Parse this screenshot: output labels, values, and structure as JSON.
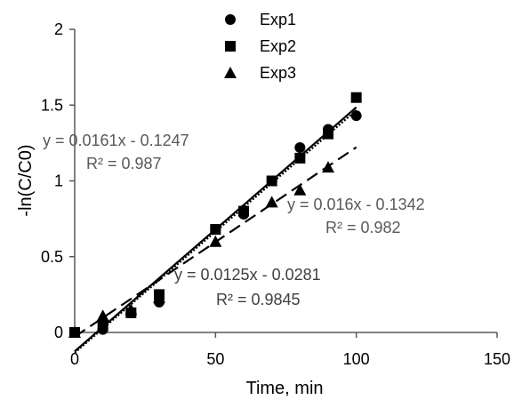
{
  "chart_data": {
    "type": "scatter",
    "xlabel": "Time, min",
    "ylabel": "-ln(C/C0)",
    "xlim": [
      0,
      150
    ],
    "ylim": [
      0,
      2
    ],
    "x_ticks": [
      "0",
      "50",
      "100",
      "150"
    ],
    "y_ticks": [
      "0",
      "0.5",
      "1",
      "1.5",
      "2"
    ],
    "grid": false,
    "legend_position": "top-center",
    "series": [
      {
        "name": "Exp1",
        "marker": "circle",
        "x": [
          0,
          10,
          20,
          30,
          50,
          60,
          70,
          80,
          90,
          100
        ],
        "y": [
          0,
          0.02,
          0.13,
          0.2,
          0.68,
          0.78,
          1.0,
          1.22,
          1.34,
          1.43
        ],
        "trendline": {
          "style": "solid",
          "x_range": [
            0,
            100
          ],
          "slope": 0.0161,
          "intercept": -0.1247,
          "equation": "y = 0.0161x - 0.1247",
          "r2": "R² = 0.987"
        }
      },
      {
        "name": "Exp2",
        "marker": "square",
        "x": [
          0,
          10,
          20,
          30,
          50,
          60,
          70,
          80,
          90,
          100
        ],
        "y": [
          0,
          0.05,
          0.13,
          0.25,
          0.68,
          0.8,
          1.0,
          1.15,
          1.31,
          1.55
        ],
        "trendline": {
          "style": "dotted",
          "x_range": [
            0,
            100
          ],
          "slope": 0.016,
          "intercept": -0.1342,
          "equation": "y = 0.016x - 0.1342",
          "r2": "R² = 0.982"
        }
      },
      {
        "name": "Exp3",
        "marker": "triangle",
        "x": [
          0,
          10,
          20,
          30,
          50,
          70,
          80,
          90
        ],
        "y": [
          0,
          0.11,
          0.15,
          0.23,
          0.6,
          0.86,
          0.94,
          1.09
        ],
        "trendline": {
          "style": "dashed",
          "x_range": [
            0,
            100
          ],
          "slope": 0.0125,
          "intercept": -0.0281,
          "equation": "y = 0.0125x - 0.0281",
          "r2": "R² = 0.9845"
        }
      }
    ],
    "colors": {
      "marker": "#000000",
      "axis": "#595959",
      "text": "#000000",
      "exp1_equation_text": "#595959",
      "exp2_equation_text": "#595959",
      "exp3_equation_text": "#404040"
    }
  }
}
